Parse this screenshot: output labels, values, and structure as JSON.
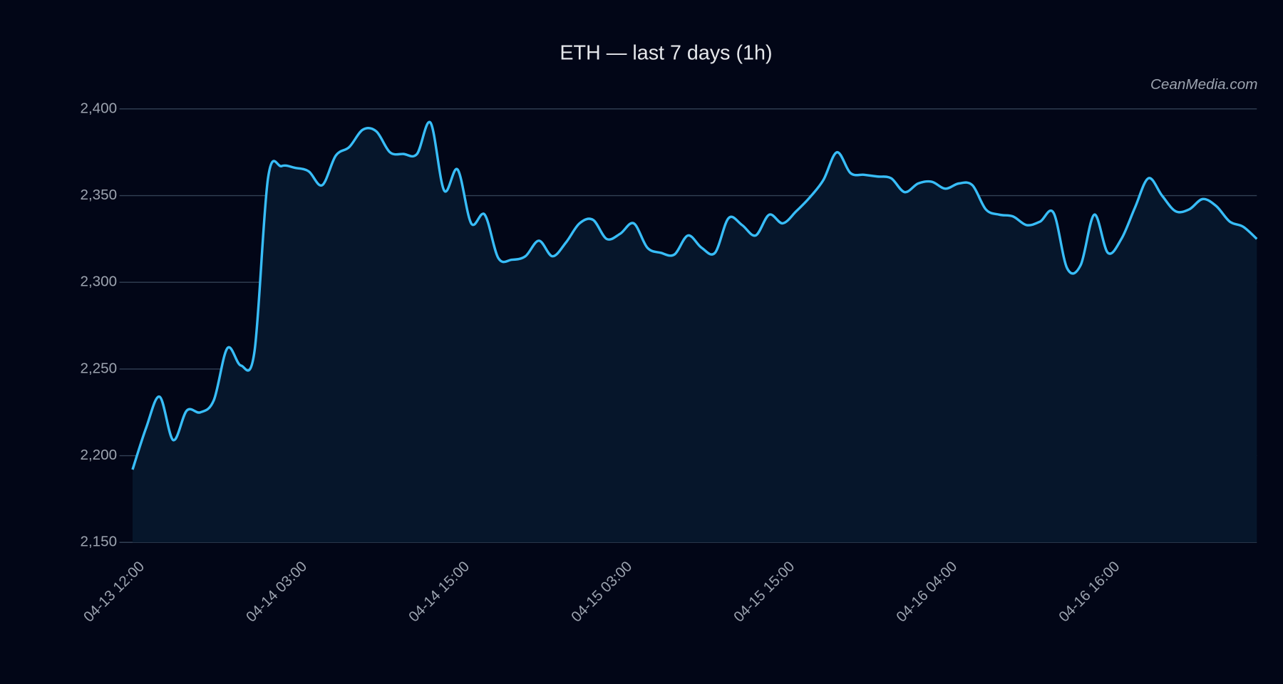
{
  "chart_data": {
    "type": "line",
    "title": "ETH — last 7 days (1h)",
    "annotation": "CeanMedia.com",
    "categories": [
      "04-13 12:00",
      null,
      null,
      null,
      null,
      null,
      null,
      null,
      null,
      null,
      null,
      null,
      "04-14 03:00",
      null,
      null,
      null,
      null,
      null,
      null,
      null,
      null,
      null,
      null,
      null,
      "04-14 15:00",
      null,
      null,
      null,
      null,
      null,
      null,
      null,
      null,
      null,
      null,
      null,
      "04-15 03:00",
      null,
      null,
      null,
      null,
      null,
      null,
      null,
      null,
      null,
      null,
      null,
      "04-15 15:00",
      null,
      null,
      null,
      null,
      null,
      null,
      null,
      null,
      null,
      null,
      null,
      "04-16 04:00",
      null,
      null,
      null,
      null,
      null,
      null,
      null,
      null,
      null,
      null,
      null,
      "04-16 16:00",
      null,
      null,
      null,
      null,
      null,
      null,
      null,
      null,
      null,
      null,
      null
    ],
    "series": [
      {
        "name": "ETH",
        "color": "#38bdf8",
        "fill": "#06162b",
        "values": [
          2192,
          2216,
          2234,
          2209,
          2226,
          2225,
          2232,
          2262,
          2252,
          2260,
          2360,
          2367,
          2366,
          2364,
          2356,
          2373,
          2378,
          2388,
          2387,
          2375,
          2374,
          2374,
          2392,
          2353,
          2365,
          2334,
          2339,
          2314,
          2313,
          2315,
          2324,
          2315,
          2323,
          2334,
          2336,
          2325,
          2328,
          2334,
          2320,
          2317,
          2316,
          2327,
          2320,
          2317,
          2337,
          2333,
          2327,
          2339,
          2334,
          2341,
          2349,
          2359,
          2375,
          2363,
          2362,
          2361,
          2360,
          2352,
          2357,
          2358,
          2354,
          2357,
          2356,
          2342,
          2339,
          2338,
          2333,
          2335,
          2340,
          2308,
          2310,
          2339,
          2317,
          2325,
          2343,
          2360,
          2350,
          2341,
          2342,
          2348,
          2344,
          2335,
          2332,
          2325
        ]
      }
    ],
    "ylim": [
      2150,
      2400
    ],
    "yticks": [
      {
        "value": 2150,
        "label": "2,150"
      },
      {
        "value": 2200,
        "label": "2,200"
      },
      {
        "value": 2250,
        "label": "2,250"
      },
      {
        "value": 2300,
        "label": "2,300"
      },
      {
        "value": 2350,
        "label": "2,350"
      },
      {
        "value": 2400,
        "label": "2,400"
      }
    ],
    "grid": true
  }
}
